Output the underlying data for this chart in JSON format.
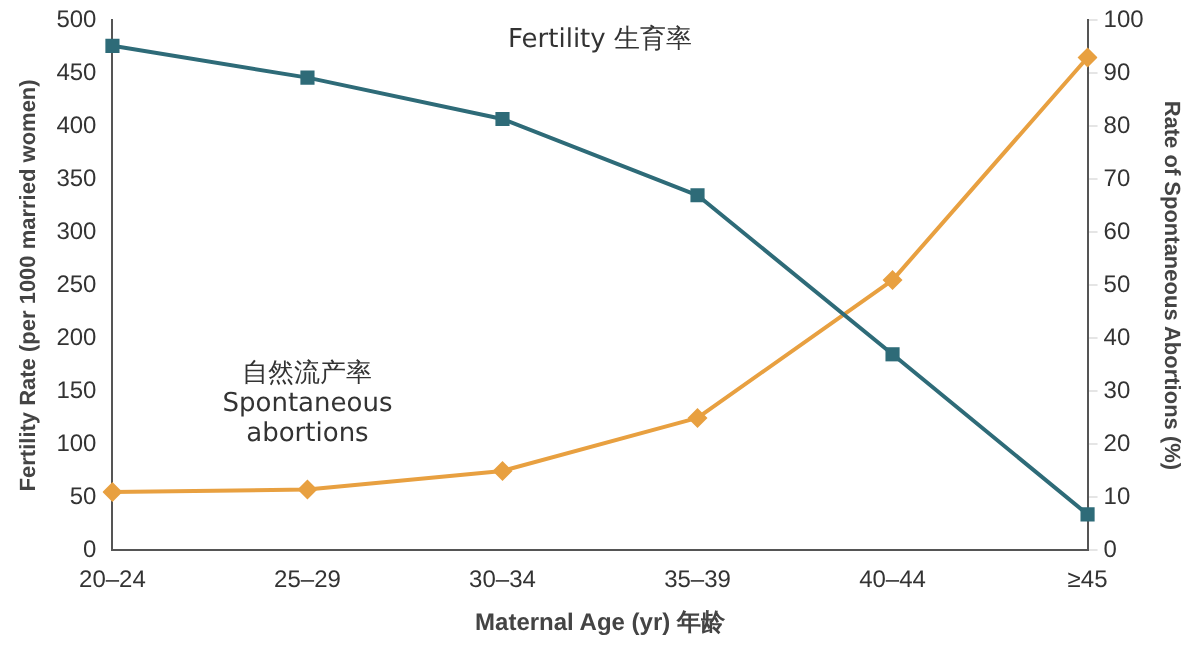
{
  "chart_data": {
    "type": "line",
    "xlabel": "Maternal Age (yr) 年龄",
    "ylabel": "Fertility Rate (per 1000 married women)",
    "y2label": "Rate of Spontaneous Abortions (%)",
    "categories": [
      "20–24",
      "25–29",
      "30–34",
      "35–39",
      "40–44",
      "≥45"
    ],
    "series": [
      {
        "name": "Fertility 生育率",
        "color": "#2e6b78",
        "marker": "square",
        "values": [
          476,
          446,
          407,
          335,
          185,
          34
        ]
      },
      {
        "name": "自然流产率\nSpontaneous\nabortions",
        "color": "#e8a040",
        "marker": "diamond",
        "axis": "y2",
        "values": [
          11,
          11.5,
          15,
          25,
          51,
          93
        ]
      }
    ],
    "ylim": [
      0,
      500
    ],
    "yticks": [
      0,
      50,
      100,
      150,
      200,
      250,
      300,
      350,
      400,
      450,
      500
    ],
    "y2lim": [
      0,
      100
    ],
    "y2ticks": [
      0,
      10,
      20,
      30,
      40,
      50,
      60,
      70,
      80,
      90,
      100
    ],
    "grid": false,
    "legend": false
  }
}
